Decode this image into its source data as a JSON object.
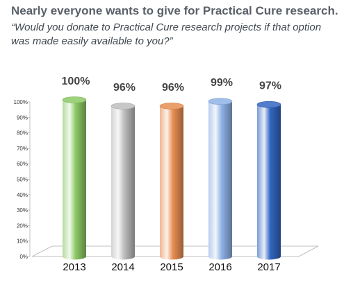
{
  "header": {
    "title": "Nearly everyone wants to give for Practical Cure research.",
    "subtitle": "“Would you donate to Practical Cure research projects if that option was made easily available to you?”"
  },
  "chart_data": {
    "type": "bar",
    "title": "Nearly everyone wants to give for Practical Cure research.",
    "subtitle": "“Would you donate to Practical Cure research projects if that option was made easily available to you?”",
    "xlabel": "",
    "ylabel": "",
    "categories": [
      "2013",
      "2014",
      "2015",
      "2016",
      "2017"
    ],
    "values": [
      100,
      96,
      96,
      99,
      97
    ],
    "data_labels": [
      "100%",
      "96%",
      "96%",
      "99%",
      "97%"
    ],
    "ylim": [
      0,
      100
    ],
    "yticks": [
      0,
      10,
      20,
      30,
      40,
      50,
      60,
      70,
      80,
      90,
      100
    ],
    "ytick_labels": [
      "0%",
      "10%",
      "20%",
      "30%",
      "40%",
      "50%",
      "60%",
      "70%",
      "80%",
      "90%",
      "100%"
    ],
    "grid": false,
    "legend": "none",
    "bar_colors": [
      "#8cc965",
      "#bdbdbd",
      "#e88e52",
      "#8fb2e6",
      "#3366c2"
    ]
  }
}
